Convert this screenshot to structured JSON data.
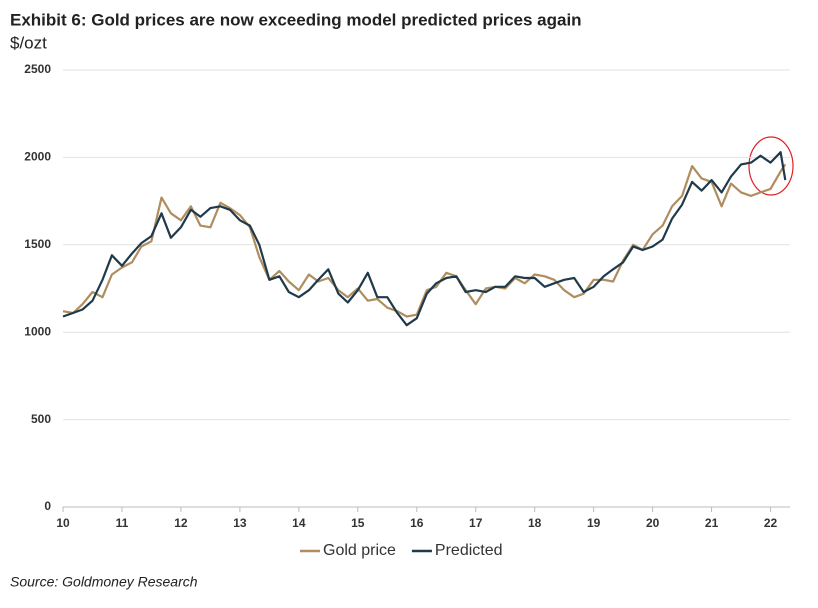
{
  "chart_data": {
    "type": "line",
    "title": "Exhibit 6: Gold prices are now exceeding model predicted prices again",
    "subtitle": "$/ozt",
    "source": "Source: Goldmoney Research",
    "x": [
      10.0,
      10.17,
      10.33,
      10.5,
      10.67,
      10.83,
      11.0,
      11.17,
      11.33,
      11.5,
      11.67,
      11.83,
      12.0,
      12.17,
      12.33,
      12.5,
      12.67,
      12.83,
      13.0,
      13.17,
      13.33,
      13.5,
      13.67,
      13.83,
      14.0,
      14.17,
      14.33,
      14.5,
      14.67,
      14.83,
      15.0,
      15.17,
      15.33,
      15.5,
      15.67,
      15.83,
      16.0,
      16.17,
      16.33,
      16.5,
      16.67,
      16.83,
      17.0,
      17.17,
      17.33,
      17.5,
      17.67,
      17.83,
      18.0,
      18.17,
      18.33,
      18.5,
      18.67,
      18.83,
      19.0,
      19.17,
      19.33,
      19.5,
      19.67,
      19.83,
      20.0,
      20.17,
      20.33,
      20.5,
      20.67,
      20.83,
      21.0,
      21.17,
      21.33,
      21.5,
      21.67,
      21.83,
      22.0,
      22.17,
      22.25
    ],
    "series": [
      {
        "name": "Gold price",
        "color": "#b08d5e",
        "values": [
          1120,
          1110,
          1160,
          1230,
          1200,
          1330,
          1370,
          1400,
          1490,
          1520,
          1770,
          1680,
          1640,
          1720,
          1610,
          1600,
          1740,
          1710,
          1670,
          1600,
          1430,
          1300,
          1350,
          1290,
          1240,
          1330,
          1290,
          1310,
          1240,
          1200,
          1250,
          1180,
          1190,
          1140,
          1120,
          1090,
          1100,
          1240,
          1260,
          1340,
          1320,
          1240,
          1160,
          1250,
          1260,
          1250,
          1310,
          1280,
          1330,
          1320,
          1300,
          1240,
          1200,
          1220,
          1300,
          1300,
          1290,
          1410,
          1500,
          1470,
          1560,
          1610,
          1720,
          1780,
          1950,
          1880,
          1860,
          1720,
          1850,
          1800,
          1780,
          1800,
          1820,
          1920,
          1960
        ]
      },
      {
        "name": "Predicted",
        "color": "#1f3a4b",
        "values": [
          1090,
          1110,
          1130,
          1180,
          1300,
          1440,
          1380,
          1450,
          1510,
          1550,
          1680,
          1540,
          1600,
          1700,
          1660,
          1710,
          1720,
          1700,
          1640,
          1610,
          1500,
          1300,
          1320,
          1230,
          1200,
          1240,
          1300,
          1360,
          1220,
          1170,
          1240,
          1340,
          1200,
          1200,
          1110,
          1040,
          1080,
          1220,
          1280,
          1310,
          1320,
          1230,
          1240,
          1230,
          1260,
          1260,
          1320,
          1310,
          1310,
          1260,
          1280,
          1300,
          1310,
          1230,
          1260,
          1320,
          1360,
          1400,
          1490,
          1470,
          1490,
          1530,
          1650,
          1730,
          1860,
          1810,
          1870,
          1800,
          1890,
          1960,
          1970,
          2010,
          1970,
          2030,
          1870
        ]
      }
    ],
    "xlim": [
      10,
      22.33
    ],
    "xticks": [
      10,
      11,
      12,
      13,
      14,
      15,
      16,
      17,
      18,
      19,
      20,
      21,
      22
    ],
    "ylim": [
      0,
      2500
    ],
    "yticks": [
      0,
      500,
      1000,
      1500,
      2000,
      2500
    ],
    "grid": true,
    "legend": "bottom"
  }
}
